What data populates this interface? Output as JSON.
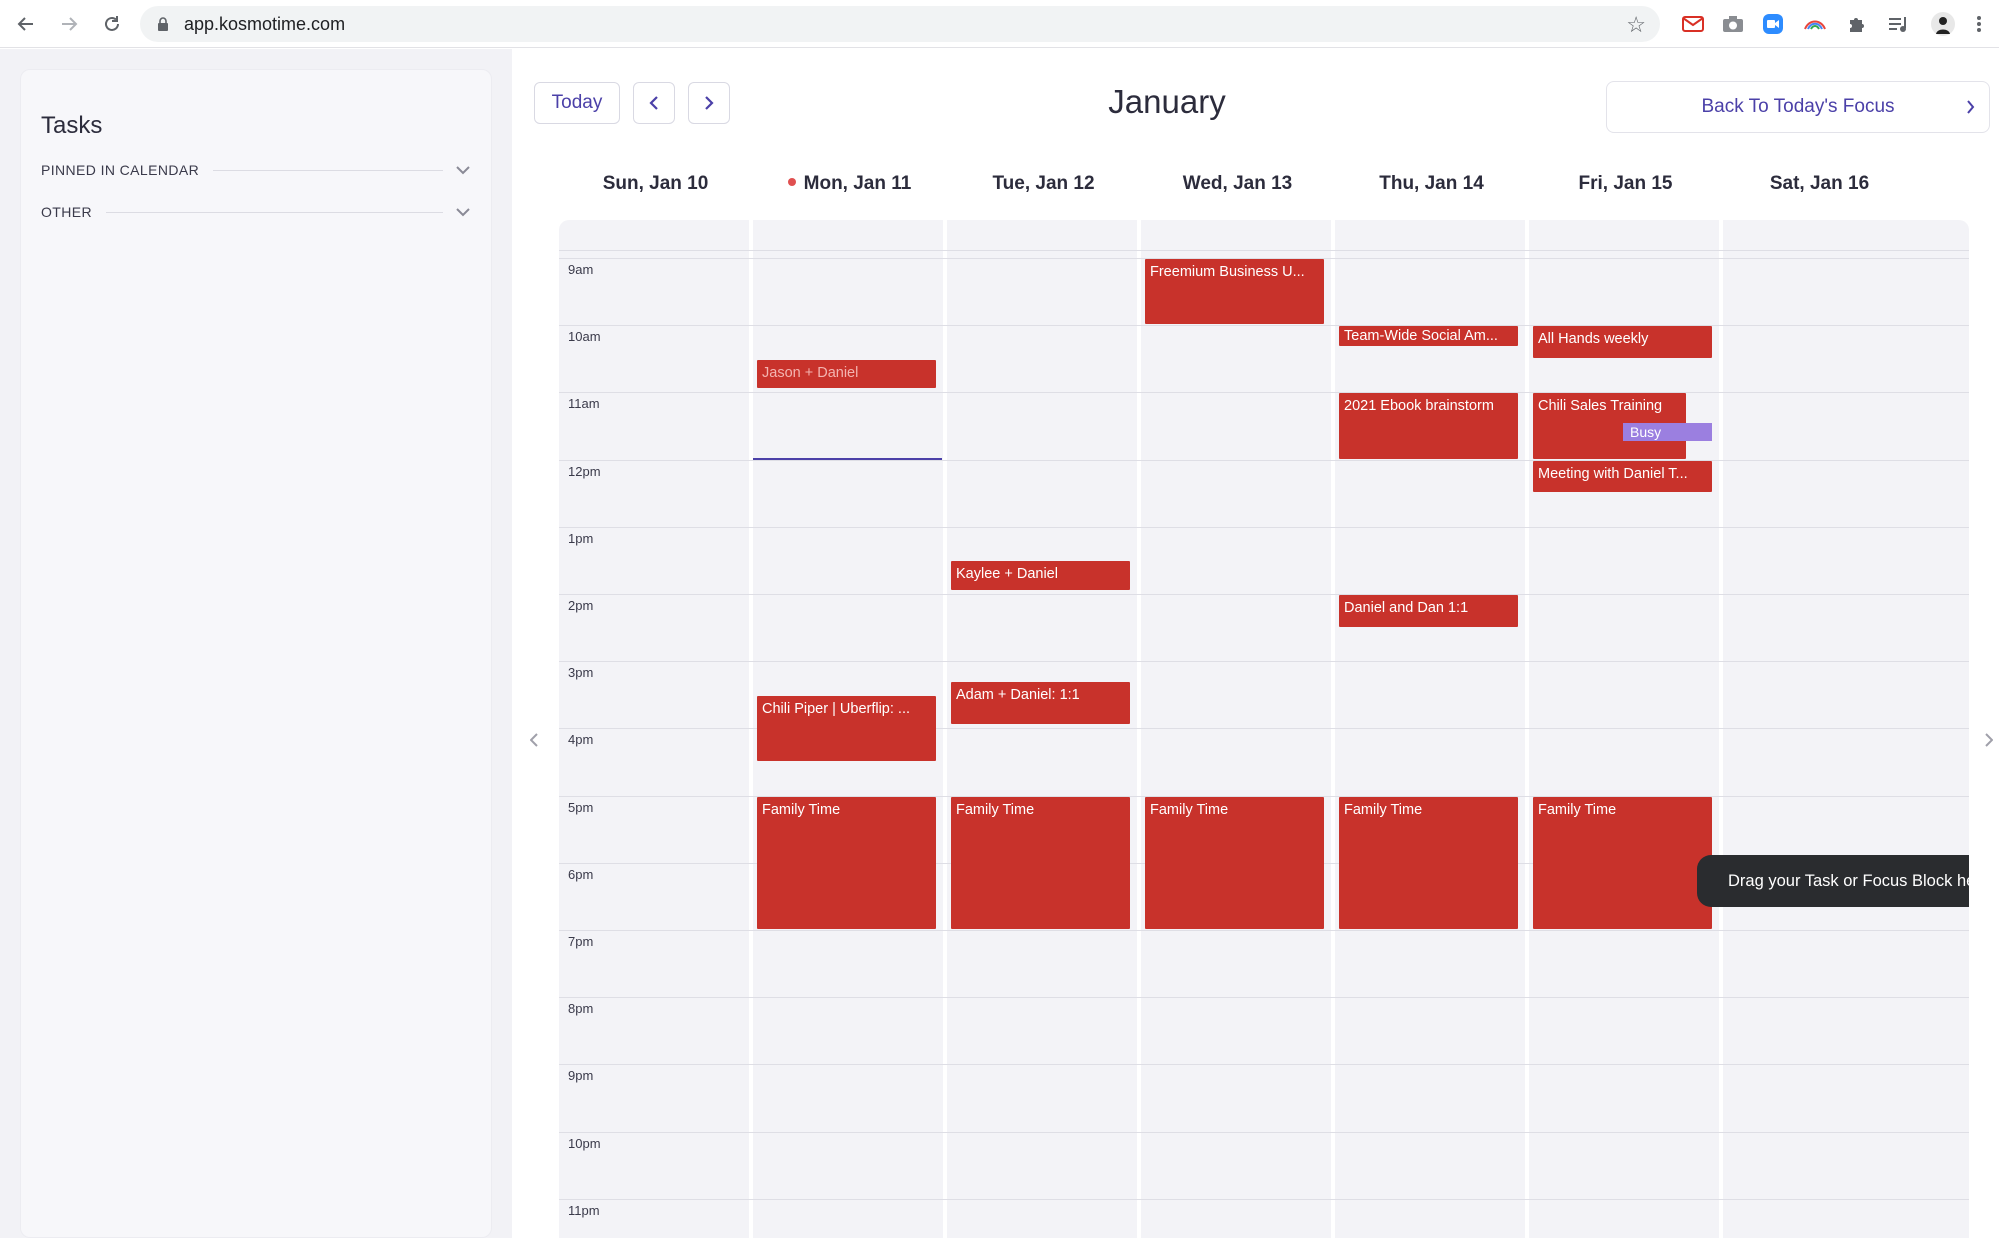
{
  "browser": {
    "url": "app.kosmotime.com",
    "back_icon": "arrow-left-icon",
    "forward_icon": "arrow-right-icon",
    "reload_icon": "reload-icon",
    "star_icon": "star-icon"
  },
  "sidebar": {
    "title": "Tasks",
    "sections": [
      {
        "label": "PINNED IN CALENDAR"
      },
      {
        "label": "OTHER"
      }
    ]
  },
  "header": {
    "today_label": "Today",
    "month": "January",
    "focus_label": "Back To Today's Focus"
  },
  "days": [
    {
      "label": "Sun, Jan 10",
      "is_today": false
    },
    {
      "label": "Mon, Jan 11",
      "is_today": true
    },
    {
      "label": "Tue, Jan 12",
      "is_today": false
    },
    {
      "label": "Wed, Jan 13",
      "is_today": false
    },
    {
      "label": "Thu, Jan 14",
      "is_today": false
    },
    {
      "label": "Fri, Jan 15",
      "is_today": false
    },
    {
      "label": "Sat, Jan 16",
      "is_today": false
    }
  ],
  "hours": [
    "9am",
    "10am",
    "11am",
    "12pm",
    "1pm",
    "2pm",
    "3pm",
    "4pm",
    "5pm",
    "6pm",
    "7pm",
    "8pm",
    "9pm",
    "10pm",
    "11pm"
  ],
  "events": [
    {
      "title": "Freemium Business U...",
      "day": 3,
      "start": 9.0,
      "end": 10.0
    },
    {
      "title": "Team-Wide Social Am...",
      "day": 4,
      "start": 10.0,
      "end": 10.25
    },
    {
      "title": "All Hands weekly",
      "day": 5,
      "start": 10.0,
      "end": 10.5
    },
    {
      "title": "Jason + Daniel",
      "day": 1,
      "start": 10.5,
      "end": 10.95,
      "faded": true
    },
    {
      "title": "2021 Ebook brainstorm",
      "day": 4,
      "start": 11.0,
      "end": 12.0
    },
    {
      "title": "Chili Sales Training",
      "day": 5,
      "start": 11.0,
      "end": 12.0
    },
    {
      "title": "Meeting with Daniel T...",
      "day": 5,
      "start": 12.0,
      "end": 12.5
    },
    {
      "title": "Kaylee + Daniel",
      "day": 2,
      "start": 13.5,
      "end": 13.95
    },
    {
      "title": "Daniel and Dan 1:1",
      "day": 4,
      "start": 14.0,
      "end": 14.5
    },
    {
      "title": "Adam + Daniel: 1:1",
      "day": 2,
      "start": 15.3,
      "end": 15.95
    },
    {
      "title": "Chili Piper | Uberflip: ...",
      "day": 1,
      "start": 15.5,
      "end": 16.5
    },
    {
      "title": "Family Time",
      "day": 1,
      "start": 17.0,
      "end": 19.0
    },
    {
      "title": "Family Time",
      "day": 2,
      "start": 17.0,
      "end": 19.0
    },
    {
      "title": "Family Time",
      "day": 3,
      "start": 17.0,
      "end": 19.0
    },
    {
      "title": "Family Time",
      "day": 4,
      "start": 17.0,
      "end": 19.0
    },
    {
      "title": "Family Time",
      "day": 5,
      "start": 17.0,
      "end": 19.0
    }
  ],
  "busy_label": "Busy",
  "now_time": 12.0,
  "tooltip": "Drag your Task or Focus Block here",
  "colors": {
    "event": "#c8322b",
    "busy": "#9b7fe0",
    "accent": "#4b40a8",
    "today_dot": "#e05050"
  }
}
